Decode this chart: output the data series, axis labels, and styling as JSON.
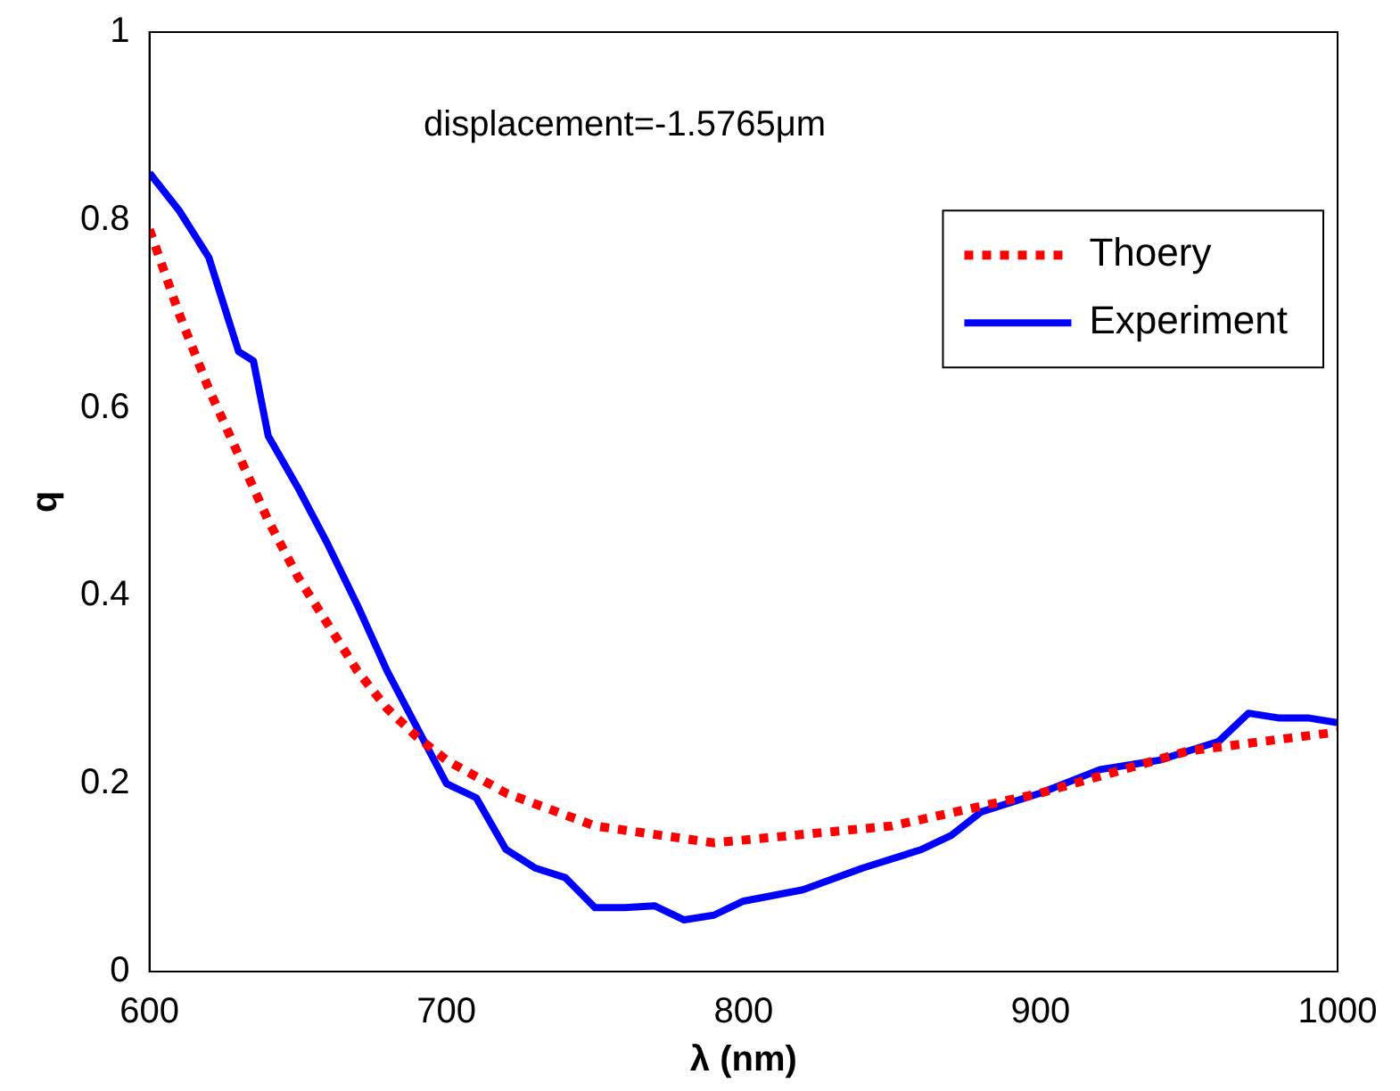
{
  "chart_data": {
    "type": "line",
    "xlabel": "λ (nm)",
    "ylabel": "q",
    "annotations": [
      "displacement=-1.5765μm"
    ],
    "xlim": [
      600,
      1000
    ],
    "xticks": [
      600,
      700,
      800,
      900,
      1000
    ],
    "ylim": [
      0,
      1
    ],
    "yticks": [
      0,
      0.2,
      0.4,
      0.6,
      0.8,
      1
    ],
    "grid": false,
    "legend": "top right",
    "marker": "none",
    "series": [
      {
        "name": "Thoery",
        "color": "#ff0000",
        "line_style": "dotted",
        "x": [
          600,
          610,
          620,
          630,
          640,
          650,
          660,
          670,
          680,
          690,
          700,
          720,
          750,
          790,
          850,
          900,
          950,
          1000
        ],
        "values": [
          0.79,
          0.7,
          0.62,
          0.55,
          0.48,
          0.42,
          0.37,
          0.32,
          0.28,
          0.25,
          0.225,
          0.19,
          0.155,
          0.137,
          0.155,
          0.19,
          0.235,
          0.255
        ]
      },
      {
        "name": "Experiment",
        "color": "#0000ff",
        "line_style": "solid",
        "x": [
          600,
          610,
          620,
          630,
          635,
          640,
          650,
          660,
          670,
          680,
          690,
          700,
          710,
          720,
          730,
          740,
          750,
          760,
          770,
          780,
          790,
          800,
          820,
          840,
          860,
          870,
          880,
          900,
          920,
          940,
          950,
          960,
          970,
          980,
          990,
          1000
        ],
        "values": [
          0.85,
          0.81,
          0.76,
          0.66,
          0.65,
          0.57,
          0.515,
          0.455,
          0.39,
          0.32,
          0.26,
          0.2,
          0.185,
          0.13,
          0.11,
          0.1,
          0.068,
          0.068,
          0.07,
          0.055,
          0.06,
          0.075,
          0.087,
          0.11,
          0.13,
          0.145,
          0.17,
          0.19,
          0.215,
          0.225,
          0.235,
          0.245,
          0.275,
          0.27,
          0.27,
          0.265
        ]
      }
    ]
  }
}
